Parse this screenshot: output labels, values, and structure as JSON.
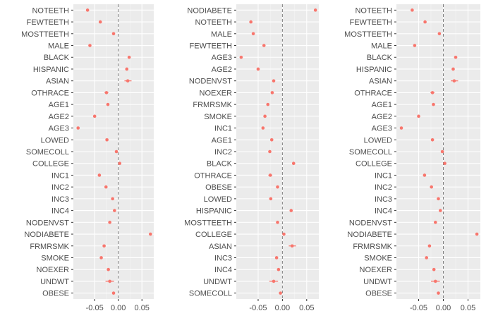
{
  "chart_data": [
    {
      "type": "scatter",
      "xlim": [
        -0.095,
        0.075
      ],
      "x_ticks": [
        -0.05,
        0.0,
        0.05
      ],
      "x_tick_labels": [
        "-0.05",
        "0.00",
        "0.05"
      ],
      "reference_line": 0,
      "point_color": "#F8766D",
      "categories": [
        "NOTEETH",
        "FEWTEETH",
        "MOSTTEETH",
        "MALE",
        "BLACK",
        "HISPANIC",
        "ASIAN",
        "OTHRACE",
        "AGE1",
        "AGE2",
        "AGE3",
        "LOWED",
        "SOMECOLL",
        "COLLEGE",
        "INC1",
        "INC2",
        "INC3",
        "INC4",
        "NODENVST",
        "NODIABETE",
        "FRMRSMK",
        "SMOKE",
        "NOEXER",
        "UNDWT",
        "OBESE"
      ],
      "points": [
        {
          "label": "NOTEETH",
          "x": -0.065,
          "lo": -0.068,
          "hi": -0.062
        },
        {
          "label": "FEWTEETH",
          "x": -0.038,
          "lo": -0.04,
          "hi": -0.036
        },
        {
          "label": "MOSTTEETH",
          "x": -0.01,
          "lo": -0.012,
          "hi": -0.008
        },
        {
          "label": "MALE",
          "x": -0.06,
          "lo": -0.062,
          "hi": -0.058
        },
        {
          "label": "BLACK",
          "x": 0.023,
          "lo": 0.02,
          "hi": 0.026
        },
        {
          "label": "HISPANIC",
          "x": 0.018,
          "lo": 0.015,
          "hi": 0.021
        },
        {
          "label": "ASIAN",
          "x": 0.02,
          "lo": 0.013,
          "hi": 0.028
        },
        {
          "label": "OTHRACE",
          "x": -0.025,
          "lo": -0.029,
          "hi": -0.021
        },
        {
          "label": "AGE1",
          "x": -0.022,
          "lo": -0.024,
          "hi": -0.02
        },
        {
          "label": "AGE2",
          "x": -0.05,
          "lo": -0.052,
          "hi": -0.048
        },
        {
          "label": "AGE3",
          "x": -0.085,
          "lo": -0.087,
          "hi": -0.083
        },
        {
          "label": "LOWED",
          "x": -0.024,
          "lo": -0.027,
          "hi": -0.021
        },
        {
          "label": "SOMECOLL",
          "x": -0.004,
          "lo": -0.006,
          "hi": -0.002
        },
        {
          "label": "COLLEGE",
          "x": 0.003,
          "lo": 0.001,
          "hi": 0.005
        },
        {
          "label": "INC1",
          "x": -0.04,
          "lo": -0.043,
          "hi": -0.037
        },
        {
          "label": "INC2",
          "x": -0.026,
          "lo": -0.028,
          "hi": -0.024
        },
        {
          "label": "INC3",
          "x": -0.012,
          "lo": -0.014,
          "hi": -0.01
        },
        {
          "label": "INC4",
          "x": -0.008,
          "lo": -0.01,
          "hi": -0.006
        },
        {
          "label": "NODENVST",
          "x": -0.018,
          "lo": -0.02,
          "hi": -0.016
        },
        {
          "label": "NODIABETE",
          "x": 0.068,
          "lo": 0.066,
          "hi": 0.07
        },
        {
          "label": "FRMRSMK",
          "x": -0.03,
          "lo": -0.032,
          "hi": -0.028
        },
        {
          "label": "SMOKE",
          "x": -0.036,
          "lo": -0.038,
          "hi": -0.034
        },
        {
          "label": "NOEXER",
          "x": -0.021,
          "lo": -0.023,
          "hi": -0.019
        },
        {
          "label": "UNDWT",
          "x": -0.018,
          "lo": -0.027,
          "hi": -0.009
        },
        {
          "label": "OBESE",
          "x": -0.01,
          "lo": -0.012,
          "hi": -0.008
        }
      ]
    },
    {
      "type": "scatter",
      "xlim": [
        -0.095,
        0.075
      ],
      "x_ticks": [
        -0.05,
        0.0,
        0.05
      ],
      "x_tick_labels": [
        "-0.05",
        "0.00",
        "0.05"
      ],
      "reference_line": 0,
      "point_color": "#F8766D",
      "categories": [
        "NODIABETE",
        "NOTEETH",
        "MALE",
        "FEWTEETH",
        "AGE3",
        "AGE2",
        "NODENVST",
        "NOEXER",
        "FRMRSMK",
        "SMOKE",
        "INC1",
        "AGE1",
        "INC2",
        "BLACK",
        "OTHRACE",
        "OBESE",
        "LOWED",
        "HISPANIC",
        "MOSTTEETH",
        "COLLEGE",
        "ASIAN",
        "INC3",
        "INC4",
        "UNDWT",
        "SOMECOLL"
      ],
      "points": [
        {
          "label": "NODIABETE",
          "x": 0.068,
          "lo": 0.066,
          "hi": 0.07
        },
        {
          "label": "NOTEETH",
          "x": -0.065,
          "lo": -0.068,
          "hi": -0.062
        },
        {
          "label": "MALE",
          "x": -0.06,
          "lo": -0.062,
          "hi": -0.058
        },
        {
          "label": "FEWTEETH",
          "x": -0.038,
          "lo": -0.04,
          "hi": -0.036
        },
        {
          "label": "AGE3",
          "x": -0.085,
          "lo": -0.087,
          "hi": -0.083
        },
        {
          "label": "AGE2",
          "x": -0.05,
          "lo": -0.052,
          "hi": -0.048
        },
        {
          "label": "NODENVST",
          "x": -0.018,
          "lo": -0.02,
          "hi": -0.016
        },
        {
          "label": "NOEXER",
          "x": -0.021,
          "lo": -0.023,
          "hi": -0.019
        },
        {
          "label": "FRMRSMK",
          "x": -0.03,
          "lo": -0.032,
          "hi": -0.028
        },
        {
          "label": "SMOKE",
          "x": -0.036,
          "lo": -0.038,
          "hi": -0.034
        },
        {
          "label": "INC1",
          "x": -0.04,
          "lo": -0.043,
          "hi": -0.037
        },
        {
          "label": "AGE1",
          "x": -0.022,
          "lo": -0.024,
          "hi": -0.02
        },
        {
          "label": "INC2",
          "x": -0.026,
          "lo": -0.028,
          "hi": -0.024
        },
        {
          "label": "BLACK",
          "x": 0.023,
          "lo": 0.02,
          "hi": 0.026
        },
        {
          "label": "OTHRACE",
          "x": -0.025,
          "lo": -0.029,
          "hi": -0.021
        },
        {
          "label": "OBESE",
          "x": -0.01,
          "lo": -0.012,
          "hi": -0.008
        },
        {
          "label": "LOWED",
          "x": -0.024,
          "lo": -0.027,
          "hi": -0.021
        },
        {
          "label": "HISPANIC",
          "x": 0.018,
          "lo": 0.015,
          "hi": 0.021
        },
        {
          "label": "MOSTTEETH",
          "x": -0.01,
          "lo": -0.012,
          "hi": -0.008
        },
        {
          "label": "COLLEGE",
          "x": 0.003,
          "lo": 0.001,
          "hi": 0.005
        },
        {
          "label": "ASIAN",
          "x": 0.02,
          "lo": 0.013,
          "hi": 0.028
        },
        {
          "label": "INC3",
          "x": -0.012,
          "lo": -0.014,
          "hi": -0.01
        },
        {
          "label": "INC4",
          "x": -0.008,
          "lo": -0.01,
          "hi": -0.006
        },
        {
          "label": "UNDWT",
          "x": -0.018,
          "lo": -0.027,
          "hi": -0.009
        },
        {
          "label": "SOMECOLL",
          "x": -0.004,
          "lo": -0.006,
          "hi": -0.002
        }
      ]
    },
    {
      "type": "scatter",
      "xlim": [
        -0.095,
        0.075
      ],
      "x_ticks": [
        -0.05,
        0.0,
        0.05
      ],
      "x_tick_labels": [
        "-0.05",
        "0.00",
        "0.05"
      ],
      "reference_line": 0,
      "point_color": "#F8766D",
      "categories": [
        "NOTEETH",
        "FEWTEETH",
        "MOSTTEETH",
        "MALE",
        "BLACK",
        "HISPANIC",
        "ASIAN",
        "OTHRACE",
        "AGE1",
        "AGE2",
        "AGE3",
        "LOWED",
        "SOMECOLL",
        "COLLEGE",
        "INC1",
        "INC2",
        "INC3",
        "INC4",
        "NODENVST",
        "NODIABETE",
        "FRMRSMK",
        "SMOKE",
        "NOEXER",
        "UNDWT",
        "OBESE"
      ],
      "points": [
        {
          "label": "NOTEETH",
          "x": -0.063,
          "lo": -0.066,
          "hi": -0.06
        },
        {
          "label": "FEWTEETH",
          "x": -0.037,
          "lo": -0.039,
          "hi": -0.035
        },
        {
          "label": "MOSTTEETH",
          "x": -0.008,
          "lo": -0.01,
          "hi": -0.006
        },
        {
          "label": "MALE",
          "x": -0.058,
          "lo": -0.06,
          "hi": -0.056
        },
        {
          "label": "BLACK",
          "x": 0.025,
          "lo": 0.022,
          "hi": 0.028
        },
        {
          "label": "HISPANIC",
          "x": 0.02,
          "lo": 0.017,
          "hi": 0.023
        },
        {
          "label": "ASIAN",
          "x": 0.022,
          "lo": 0.015,
          "hi": 0.03
        },
        {
          "label": "OTHRACE",
          "x": -0.022,
          "lo": -0.026,
          "hi": -0.018
        },
        {
          "label": "AGE1",
          "x": -0.02,
          "lo": -0.022,
          "hi": -0.018
        },
        {
          "label": "AGE2",
          "x": -0.05,
          "lo": -0.052,
          "hi": -0.048
        },
        {
          "label": "AGE3",
          "x": -0.085,
          "lo": -0.087,
          "hi": -0.083
        },
        {
          "label": "LOWED",
          "x": -0.022,
          "lo": -0.025,
          "hi": -0.019
        },
        {
          "label": "SOMECOLL",
          "x": -0.002,
          "lo": -0.004,
          "hi": 0.0
        },
        {
          "label": "COLLEGE",
          "x": 0.003,
          "lo": 0.001,
          "hi": 0.005
        },
        {
          "label": "INC1",
          "x": -0.038,
          "lo": -0.041,
          "hi": -0.035
        },
        {
          "label": "INC2",
          "x": -0.024,
          "lo": -0.026,
          "hi": -0.022
        },
        {
          "label": "INC3",
          "x": -0.01,
          "lo": -0.012,
          "hi": -0.008
        },
        {
          "label": "INC4",
          "x": -0.006,
          "lo": -0.008,
          "hi": -0.004
        },
        {
          "label": "NODENVST",
          "x": -0.016,
          "lo": -0.018,
          "hi": -0.014
        },
        {
          "label": "NODIABETE",
          "x": 0.068,
          "lo": 0.066,
          "hi": 0.07
        },
        {
          "label": "FRMRSMK",
          "x": -0.028,
          "lo": -0.03,
          "hi": -0.026
        },
        {
          "label": "SMOKE",
          "x": -0.034,
          "lo": -0.036,
          "hi": -0.032
        },
        {
          "label": "NOEXER",
          "x": -0.019,
          "lo": -0.021,
          "hi": -0.017
        },
        {
          "label": "UNDWT",
          "x": -0.016,
          "lo": -0.025,
          "hi": -0.007
        },
        {
          "label": "OBESE",
          "x": -0.01,
          "lo": -0.012,
          "hi": -0.008
        }
      ]
    }
  ]
}
